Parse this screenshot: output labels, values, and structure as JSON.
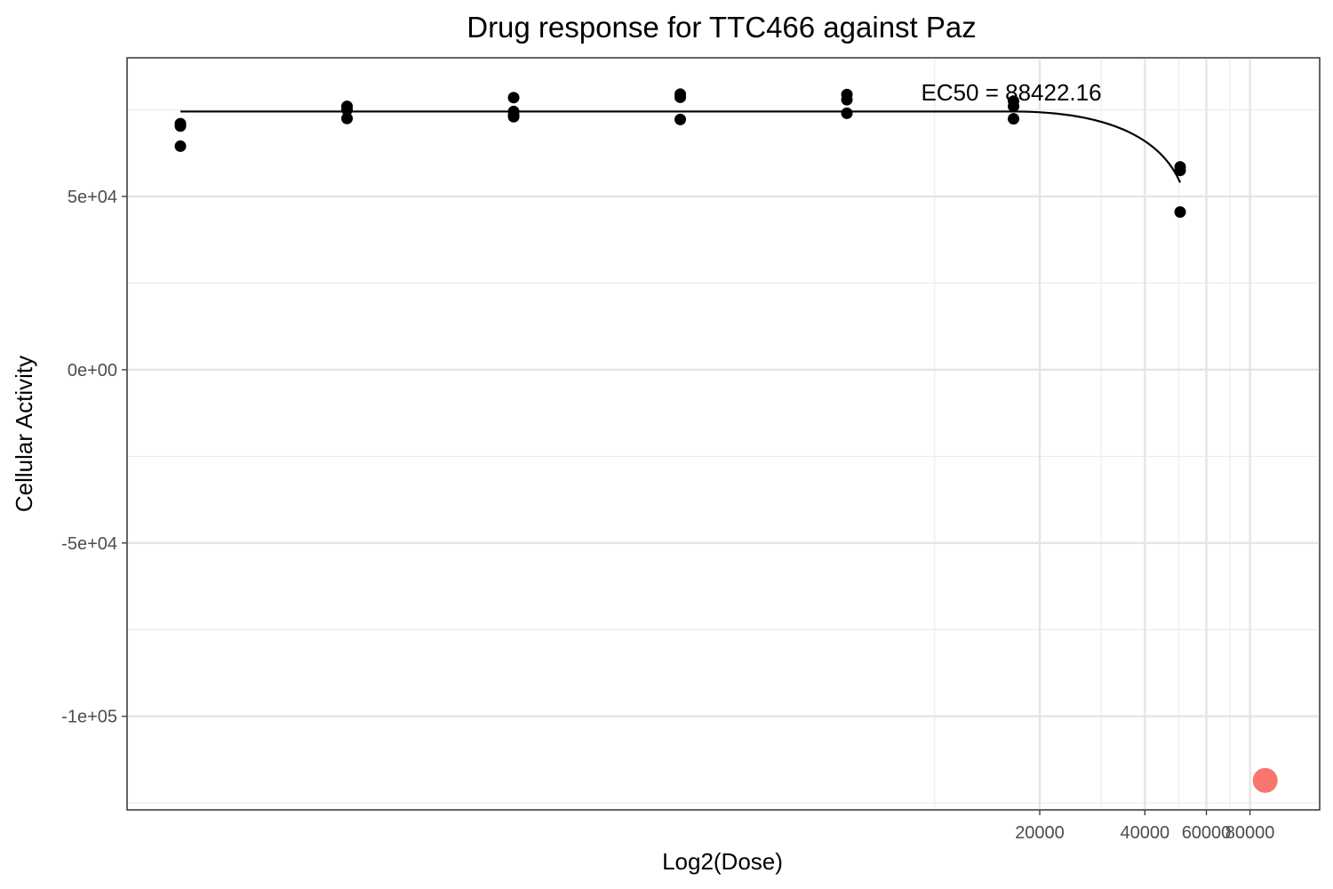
{
  "chart_data": {
    "type": "scatter",
    "title": "Drug response for TTC466 against Paz",
    "xlabel": "Log2(Dose)",
    "ylabel": "Cellular Activity",
    "ylim": [
      -127000,
      90000
    ],
    "y_ticks": [
      {
        "value": 50000,
        "label": "5e+04"
      },
      {
        "value": 0,
        "label": "0e+00"
      },
      {
        "value": -50000,
        "label": "-5e+04"
      },
      {
        "value": -100000,
        "label": "-1e+05"
      }
    ],
    "y_minor": [
      75000,
      25000,
      -25000,
      -75000,
      -125000
    ],
    "x_log_ticks": [
      {
        "value": 20000,
        "label": "20000"
      },
      {
        "value": 40000,
        "label": "40000"
      },
      {
        "value": 60000,
        "label": "60000"
      },
      {
        "value": 80000,
        "label": "80000"
      }
    ],
    "x_log_minor": [
      10000,
      30000,
      50000,
      70000
    ],
    "dose_groups": [
      {
        "x_index": 1,
        "y": [
          71000,
          70300,
          64500
        ]
      },
      {
        "x_index": 2,
        "y": [
          76000,
          75000,
          72500
        ]
      },
      {
        "x_index": 3,
        "y": [
          78500,
          74500,
          73500,
          73000
        ]
      },
      {
        "x_index": 4,
        "y": [
          79500,
          78600,
          72200
        ]
      },
      {
        "x_index": 5,
        "y": [
          79400,
          77900,
          74000
        ]
      },
      {
        "x_index": 6,
        "y": [
          77500,
          76000,
          72400
        ]
      },
      {
        "x_index": 7,
        "y": [
          58500,
          57500,
          45500
        ]
      }
    ],
    "fit_curve": {
      "top": 74500,
      "steep_start_index": 6,
      "end_y": 54000
    },
    "ec50_label": "EC50 = 88422.16",
    "ec50_marker": {
      "value": 88422.16,
      "y": -118500,
      "color": "#f8766d"
    }
  }
}
